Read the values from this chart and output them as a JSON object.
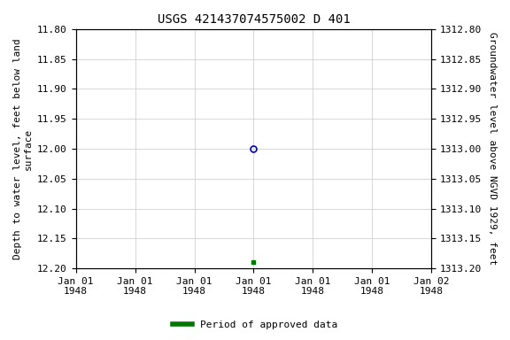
{
  "title": "USGS 421437074575002 D 401",
  "ylabel_left": "Depth to water level, feet below land\nsurface",
  "ylabel_right": "Groundwater level above NGVD 1929, feet",
  "ylim_left": [
    11.8,
    12.2
  ],
  "ylim_right": [
    1312.8,
    1313.2
  ],
  "yticks_left": [
    11.8,
    11.85,
    11.9,
    11.95,
    12.0,
    12.05,
    12.1,
    12.15,
    12.2
  ],
  "yticks_right": [
    1312.8,
    1312.85,
    1312.9,
    1312.95,
    1313.0,
    1313.05,
    1313.1,
    1313.15,
    1313.2
  ],
  "data_point_x": 3.0,
  "data_point_y": 12.0,
  "data_point_color": "#0000cc",
  "data_point_marker": "o",
  "green_point_x": 3.0,
  "green_point_y": 12.19,
  "green_point_color": "#007700",
  "green_point_marker": "s",
  "xlim": [
    0,
    6
  ],
  "xtick_positions": [
    0,
    1,
    2,
    3,
    4,
    5,
    6
  ],
  "xtick_labels": [
    "Jan 01\n1948",
    "Jan 01\n1948",
    "Jan 01\n1948",
    "Jan 01\n1948",
    "Jan 01\n1948",
    "Jan 01\n1948",
    "Jan 02\n1948"
  ],
  "legend_label": "Period of approved data",
  "legend_color": "#007700",
  "background_color": "#ffffff",
  "grid_color": "#c8c8c8",
  "font_family": "monospace",
  "title_fontsize": 10,
  "label_fontsize": 8,
  "tick_fontsize": 8
}
